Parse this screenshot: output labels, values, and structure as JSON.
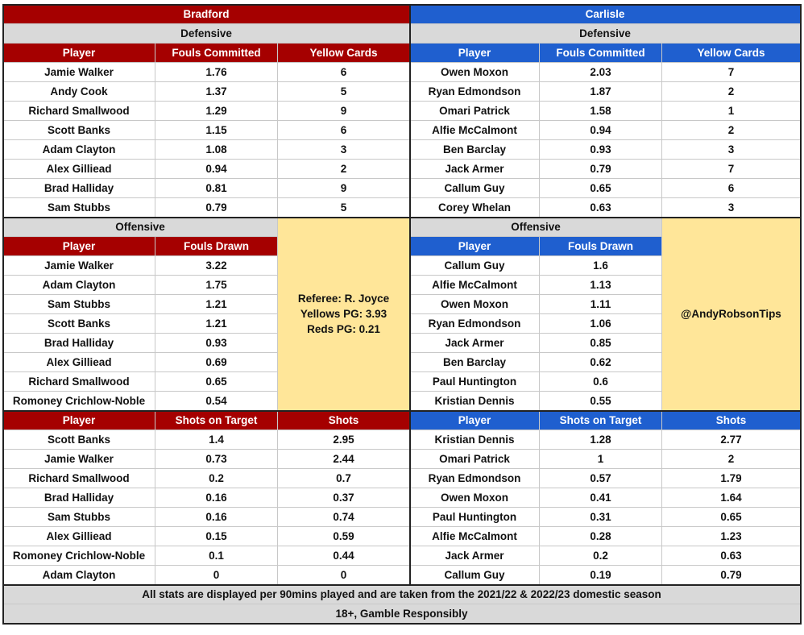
{
  "teams": {
    "home": {
      "name": "Bradford",
      "color": "#a50000"
    },
    "away": {
      "name": "Carlisle",
      "color": "#1f5fcf"
    }
  },
  "labels": {
    "defensive": "Defensive",
    "offensive": "Offensive",
    "player": "Player",
    "fouls_committed": "Fouls Committed",
    "yellow_cards": "Yellow Cards",
    "fouls_drawn": "Fouls Drawn",
    "shots_on_target": "Shots on Target",
    "shots": "Shots"
  },
  "bradford": {
    "defensive": [
      [
        "Jamie Walker",
        "1.76",
        "6"
      ],
      [
        "Andy Cook",
        "1.37",
        "5"
      ],
      [
        "Richard Smallwood",
        "1.29",
        "9"
      ],
      [
        "Scott Banks",
        "1.15",
        "6"
      ],
      [
        "Adam Clayton",
        "1.08",
        "3"
      ],
      [
        "Alex Gilliead",
        "0.94",
        "2"
      ],
      [
        "Brad Halliday",
        "0.81",
        "9"
      ],
      [
        "Sam Stubbs",
        "0.79",
        "5"
      ]
    ],
    "offensive": [
      [
        "Jamie Walker",
        "3.22"
      ],
      [
        "Adam Clayton",
        "1.75"
      ],
      [
        "Sam Stubbs",
        "1.21"
      ],
      [
        "Scott Banks",
        "1.21"
      ],
      [
        "Brad Halliday",
        "0.93"
      ],
      [
        "Alex Gilliead",
        "0.69"
      ],
      [
        "Richard Smallwood",
        "0.65"
      ],
      [
        "Romoney Crichlow-Noble",
        "0.54"
      ]
    ],
    "shots": [
      [
        "Scott Banks",
        "1.4",
        "2.95"
      ],
      [
        "Jamie Walker",
        "0.73",
        "2.44"
      ],
      [
        "Richard Smallwood",
        "0.2",
        "0.7"
      ],
      [
        "Brad Halliday",
        "0.16",
        "0.37"
      ],
      [
        "Sam Stubbs",
        "0.16",
        "0.74"
      ],
      [
        "Alex Gilliead",
        "0.15",
        "0.59"
      ],
      [
        "Romoney Crichlow-Noble",
        "0.1",
        "0.44"
      ],
      [
        "Adam Clayton",
        "0",
        "0"
      ]
    ]
  },
  "carlisle": {
    "defensive": [
      [
        "Owen Moxon",
        "2.03",
        "7"
      ],
      [
        "Ryan Edmondson",
        "1.87",
        "2"
      ],
      [
        "Omari Patrick",
        "1.58",
        "1"
      ],
      [
        "Alfie McCalmont",
        "0.94",
        "2"
      ],
      [
        "Ben Barclay",
        "0.93",
        "3"
      ],
      [
        "Jack Armer",
        "0.79",
        "7"
      ],
      [
        "Callum Guy",
        "0.65",
        "6"
      ],
      [
        "Corey Whelan",
        "0.63",
        "3"
      ]
    ],
    "offensive": [
      [
        "Callum Guy",
        "1.6"
      ],
      [
        "Alfie McCalmont",
        "1.13"
      ],
      [
        "Owen Moxon",
        "1.11"
      ],
      [
        "Ryan Edmondson",
        "1.06"
      ],
      [
        "Jack Armer",
        "0.85"
      ],
      [
        "Ben Barclay",
        "0.62"
      ],
      [
        "Paul Huntington",
        "0.6"
      ],
      [
        "Kristian Dennis",
        "0.55"
      ]
    ],
    "shots": [
      [
        "Kristian Dennis",
        "1.28",
        "2.77"
      ],
      [
        "Omari Patrick",
        "1",
        "2"
      ],
      [
        "Ryan Edmondson",
        "0.57",
        "1.79"
      ],
      [
        "Owen Moxon",
        "0.41",
        "1.64"
      ],
      [
        "Paul Huntington",
        "0.31",
        "0.65"
      ],
      [
        "Alfie McCalmont",
        "0.28",
        "1.23"
      ],
      [
        "Jack Armer",
        "0.2",
        "0.63"
      ],
      [
        "Callum Guy",
        "0.19",
        "0.79"
      ]
    ]
  },
  "referee_box": {
    "referee": "Referee: R. Joyce",
    "yellows": "Yellows PG: 3.93",
    "reds": "Reds PG: 0.21"
  },
  "handle": "@AndyRobsonTips",
  "footer": {
    "note": "All stats are displayed per 90mins played and are taken from the 2021/22 & 2022/23 domestic season",
    "disclaimer": "18+, Gamble Responsibly"
  }
}
